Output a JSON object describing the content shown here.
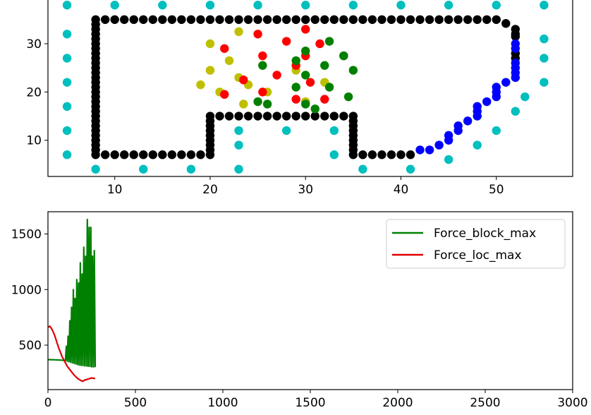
{
  "chart_data": [
    {
      "type": "scatter",
      "xlim": [
        3,
        58
      ],
      "ylim": [
        2.5,
        39.5
      ],
      "xticks": [
        10,
        20,
        30,
        40,
        50
      ],
      "yticks": [
        10,
        20,
        30
      ],
      "grid": false,
      "series": [
        {
          "color": "#00bfbf",
          "points": [
            [
              5,
              38
            ],
            [
              10,
              38
            ],
            [
              15,
              38
            ],
            [
              20,
              38
            ],
            [
              25,
              38
            ],
            [
              30,
              38
            ],
            [
              35,
              38
            ],
            [
              40,
              38
            ],
            [
              45,
              38
            ],
            [
              50,
              38
            ],
            [
              55,
              38
            ],
            [
              5,
              32
            ],
            [
              5,
              27
            ],
            [
              5,
              22
            ],
            [
              5,
              17
            ],
            [
              5,
              12
            ],
            [
              5,
              7
            ],
            [
              55,
              31
            ],
            [
              55,
              27
            ],
            [
              55,
              22
            ],
            [
              53,
              19
            ],
            [
              52,
              16
            ],
            [
              50,
              12
            ],
            [
              48,
              9
            ],
            [
              45,
              6
            ],
            [
              8,
              4
            ],
            [
              13,
              4
            ],
            [
              18,
              4
            ],
            [
              23,
              4
            ],
            [
              36,
              4
            ],
            [
              41,
              4
            ],
            [
              23,
              12
            ],
            [
              28,
              12
            ],
            [
              33,
              12
            ],
            [
              23,
              9
            ],
            [
              33,
              7
            ]
          ]
        },
        {
          "color": "#000000",
          "points": [
            [
              8,
              35
            ],
            [
              9,
              35
            ],
            [
              10,
              35
            ],
            [
              11,
              35
            ],
            [
              12,
              35
            ],
            [
              13,
              35
            ],
            [
              14,
              35
            ],
            [
              15,
              35
            ],
            [
              16,
              35
            ],
            [
              17,
              35
            ],
            [
              18,
              35
            ],
            [
              19,
              35
            ],
            [
              20,
              35
            ],
            [
              21,
              35
            ],
            [
              22,
              35
            ],
            [
              23,
              35
            ],
            [
              24,
              35
            ],
            [
              25,
              35
            ],
            [
              26,
              35
            ],
            [
              27,
              35
            ],
            [
              28,
              35
            ],
            [
              29,
              35
            ],
            [
              30,
              35
            ],
            [
              31,
              35
            ],
            [
              32,
              35
            ],
            [
              33,
              35
            ],
            [
              34,
              35
            ],
            [
              35,
              35
            ],
            [
              36,
              35
            ],
            [
              37,
              35
            ],
            [
              38,
              35
            ],
            [
              39,
              35
            ],
            [
              40,
              35
            ],
            [
              41,
              35
            ],
            [
              42,
              35
            ],
            [
              43,
              35
            ],
            [
              44,
              35
            ],
            [
              45,
              35
            ],
            [
              46,
              35
            ],
            [
              47,
              35
            ],
            [
              48,
              35
            ],
            [
              49,
              35
            ],
            [
              50,
              35
            ],
            [
              51,
              34.2
            ],
            [
              52,
              33
            ],
            [
              52,
              32
            ],
            [
              52,
              31.5
            ],
            [
              52,
              28
            ],
            [
              52,
              27
            ],
            [
              8,
              34
            ],
            [
              8,
              33
            ],
            [
              8,
              32
            ],
            [
              8,
              31
            ],
            [
              8,
              30
            ],
            [
              8,
              29
            ],
            [
              8,
              28
            ],
            [
              8,
              27
            ],
            [
              8,
              26
            ],
            [
              8,
              25
            ],
            [
              8,
              24
            ],
            [
              8,
              23
            ],
            [
              8,
              22
            ],
            [
              8,
              21
            ],
            [
              8,
              20
            ],
            [
              8,
              19
            ],
            [
              8,
              18
            ],
            [
              8,
              17
            ],
            [
              8,
              16
            ],
            [
              8,
              15
            ],
            [
              8,
              14
            ],
            [
              8,
              13
            ],
            [
              8,
              12
            ],
            [
              8,
              11
            ],
            [
              8,
              10
            ],
            [
              8,
              9
            ],
            [
              8,
              8
            ],
            [
              8,
              7
            ],
            [
              9,
              7
            ],
            [
              10,
              7
            ],
            [
              11,
              7
            ],
            [
              12,
              7
            ],
            [
              13,
              7
            ],
            [
              14,
              7
            ],
            [
              15,
              7
            ],
            [
              16,
              7
            ],
            [
              17,
              7
            ],
            [
              18,
              7
            ],
            [
              19,
              7
            ],
            [
              20,
              7
            ],
            [
              20,
              8
            ],
            [
              20,
              9
            ],
            [
              20,
              10
            ],
            [
              20,
              11
            ],
            [
              20,
              12
            ],
            [
              20,
              13
            ],
            [
              20,
              14
            ],
            [
              20,
              15
            ],
            [
              21,
              15
            ],
            [
              22,
              15
            ],
            [
              23,
              15
            ],
            [
              24,
              15
            ],
            [
              25,
              15
            ],
            [
              26,
              15
            ],
            [
              27,
              15
            ],
            [
              28,
              15
            ],
            [
              29,
              15
            ],
            [
              30,
              15
            ],
            [
              31,
              15
            ],
            [
              32,
              15
            ],
            [
              33,
              15
            ],
            [
              34,
              15
            ],
            [
              35,
              15
            ],
            [
              35,
              14
            ],
            [
              35,
              13
            ],
            [
              35,
              12
            ],
            [
              35,
              11
            ],
            [
              35,
              10
            ],
            [
              35,
              9
            ],
            [
              35,
              8
            ],
            [
              35,
              7
            ],
            [
              36,
              7
            ],
            [
              37,
              7
            ],
            [
              38,
              7
            ],
            [
              39,
              7
            ],
            [
              40,
              7
            ],
            [
              41,
              7
            ]
          ]
        },
        {
          "color": "#0000ff",
          "points": [
            [
              42,
              8
            ],
            [
              43,
              8
            ],
            [
              44,
              9
            ],
            [
              45,
              10
            ],
            [
              45,
              11
            ],
            [
              46,
              12
            ],
            [
              46,
              13
            ],
            [
              47,
              14
            ],
            [
              48,
              15
            ],
            [
              48,
              16
            ],
            [
              48,
              17
            ],
            [
              49,
              18
            ],
            [
              50,
              19
            ],
            [
              50,
              20
            ],
            [
              50,
              21
            ],
            [
              51,
              22
            ],
            [
              52,
              23
            ],
            [
              52,
              24
            ],
            [
              52,
              25
            ],
            [
              52,
              26
            ],
            [
              52,
              29
            ],
            [
              52,
              30
            ]
          ]
        },
        {
          "color": "#bfbf00",
          "points": [
            [
              23,
              32.5
            ],
            [
              20,
              30
            ],
            [
              20,
              24.5
            ],
            [
              22,
              26.5
            ],
            [
              23,
              23
            ],
            [
              19,
              21.5
            ],
            [
              21,
              20
            ],
            [
              24,
              21.5
            ],
            [
              26,
              20
            ],
            [
              23.5,
              17.5
            ],
            [
              29,
              24.5
            ],
            [
              30,
              18
            ],
            [
              32,
              22
            ]
          ]
        },
        {
          "color": "#ff0000",
          "points": [
            [
              25,
              32
            ],
            [
              28,
              30.5
            ],
            [
              30,
              33
            ],
            [
              31.5,
              30
            ],
            [
              21.5,
              29
            ],
            [
              25.5,
              27.5
            ],
            [
              30,
              27.5
            ],
            [
              34,
              27.5
            ],
            [
              29,
              25.5
            ],
            [
              27,
              23.5
            ],
            [
              23.5,
              22.5
            ],
            [
              30.5,
              22
            ],
            [
              25.5,
              20
            ],
            [
              21.5,
              19.5
            ],
            [
              29,
              18.5
            ],
            [
              32,
              18.5
            ]
          ]
        },
        {
          "color": "#008000",
          "points": [
            [
              32.5,
              30.5
            ],
            [
              30,
              28.5
            ],
            [
              34,
              27.5
            ],
            [
              29,
              26.5
            ],
            [
              25.5,
              25.5
            ],
            [
              32,
              25.5
            ],
            [
              35,
              24.5
            ],
            [
              30,
              23.5
            ],
            [
              32.5,
              21
            ],
            [
              29,
              21
            ],
            [
              26,
              17.5
            ],
            [
              25,
              18
            ],
            [
              30,
              17.5
            ],
            [
              31,
              16.5
            ],
            [
              34.5,
              19
            ]
          ]
        }
      ]
    },
    {
      "type": "line",
      "xlim": [
        0,
        3000
      ],
      "ylim": [
        100,
        1700
      ],
      "xticks": [
        0,
        500,
        1000,
        1500,
        2000,
        2500,
        3000
      ],
      "yticks": [
        500,
        1000,
        1500
      ],
      "grid": false,
      "legend_position": "top-right",
      "series": [
        {
          "name": "Force_block_max",
          "color": "#008000",
          "x": [
            0,
            40,
            80,
            100,
            105,
            110,
            115,
            120,
            125,
            130,
            135,
            140,
            145,
            150,
            155,
            160,
            165,
            170,
            175,
            180,
            185,
            190,
            195,
            200,
            205,
            210,
            215,
            220,
            225,
            230,
            235,
            240,
            245,
            250,
            255,
            260,
            265,
            270
          ],
          "y": [
            370,
            368,
            365,
            360,
            490,
            355,
            580,
            350,
            720,
            345,
            840,
            340,
            1000,
            335,
            920,
            330,
            1090,
            325,
            1060,
            320,
            1240,
            318,
            1140,
            316,
            1380,
            314,
            1300,
            312,
            1630,
            310,
            1560,
            308,
            1560,
            306,
            1300,
            304,
            1350,
            302
          ]
        },
        {
          "name": "Force_loc_max",
          "color": "#e00000",
          "x": [
            0,
            10,
            20,
            30,
            40,
            50,
            60,
            70,
            80,
            90,
            100,
            110,
            120,
            130,
            140,
            150,
            160,
            170,
            180,
            190,
            200,
            210,
            220,
            230,
            240,
            250,
            260,
            270
          ],
          "y": [
            660,
            670,
            650,
            620,
            580,
            530,
            480,
            440,
            400,
            370,
            340,
            310,
            290,
            270,
            250,
            230,
            215,
            200,
            190,
            180,
            175,
            185,
            190,
            195,
            200,
            205,
            202,
            200
          ]
        }
      ]
    }
  ]
}
